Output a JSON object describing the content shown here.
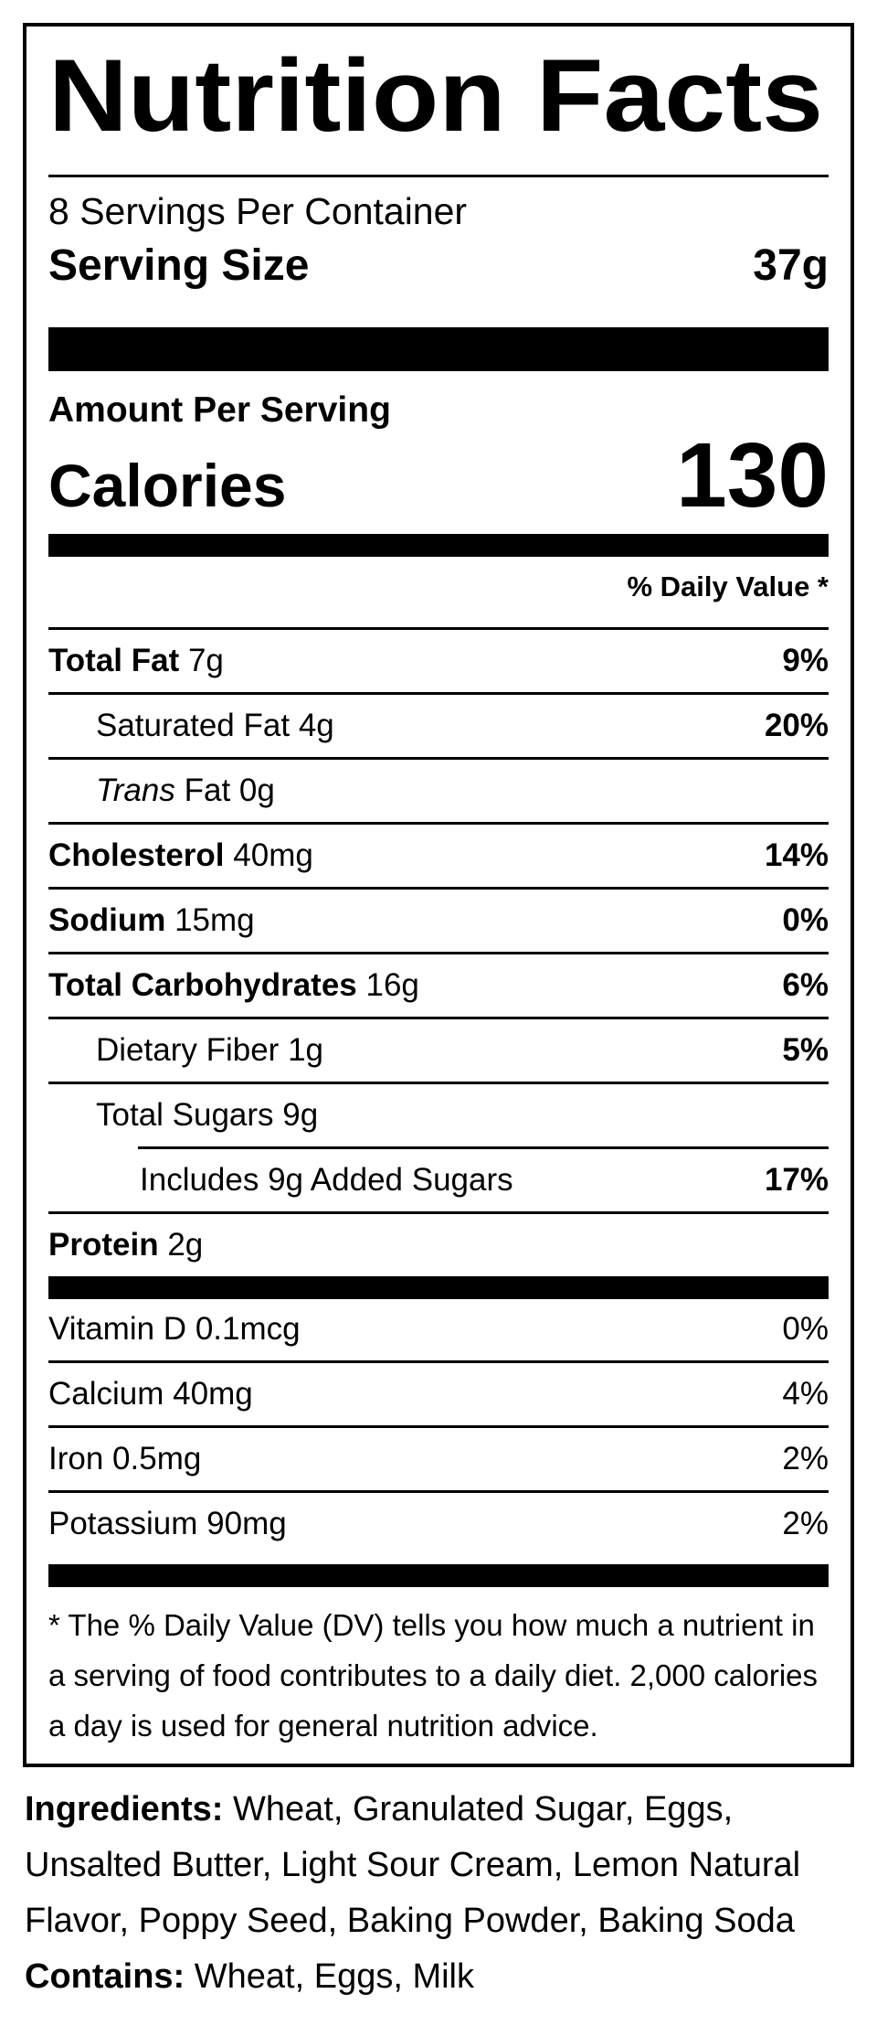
{
  "label": {
    "title": "Nutrition Facts",
    "servings_per_container": "8 Servings Per Container",
    "serving_size_label": "Serving Size",
    "serving_size_value": "37g",
    "amount_per_serving": "Amount Per Serving",
    "calories_label": "Calories",
    "calories_value": "130",
    "daily_value_header": "% Daily Value *",
    "nutrients": [
      {
        "name": "Total Fat",
        "amount": "7g",
        "dv": "9%"
      },
      {
        "name": "Saturated Fat",
        "amount": "4g",
        "dv": "20%"
      },
      {
        "name": "Trans",
        "name2": "Fat",
        "amount": "0g",
        "dv": ""
      },
      {
        "name": "Cholesterol",
        "amount": "40mg",
        "dv": "14%"
      },
      {
        "name": "Sodium",
        "amount": "15mg",
        "dv": "0%"
      },
      {
        "name": "Total Carbohydrates",
        "amount": "16g",
        "dv": "6%"
      },
      {
        "name": "Dietary Fiber",
        "amount": "1g",
        "dv": "5%"
      },
      {
        "name": "Total Sugars",
        "amount": "9g",
        "dv": ""
      },
      {
        "name": "Includes 9g Added Sugars",
        "amount": "",
        "dv": "17%"
      },
      {
        "name": "Protein",
        "amount": "2g",
        "dv": ""
      }
    ],
    "vitamins": [
      {
        "name": "Vitamin D",
        "amount": "0.1mcg",
        "dv": "0%"
      },
      {
        "name": "Calcium",
        "amount": "40mg",
        "dv": "4%"
      },
      {
        "name": "Iron",
        "amount": "0.5mg",
        "dv": "2%"
      },
      {
        "name": "Potassium",
        "amount": "90mg",
        "dv": "2%"
      }
    ],
    "footnote": "* The % Daily Value (DV) tells you how much a nutrient in a serving of food contributes to a daily diet. 2,000 calories a day is used for general nutrition advice."
  },
  "ingredients": {
    "label": "Ingredients:",
    "text": "Wheat, Granulated Sugar, Eggs, Unsalted Butter, Light Sour Cream, Lemon Natural Flavor, Poppy Seed, Baking Powder, Baking Soda",
    "contains_label": "Contains:",
    "contains_text": "Wheat, Eggs, Milk"
  },
  "colors": {
    "text": "#000000",
    "background": "#ffffff"
  }
}
